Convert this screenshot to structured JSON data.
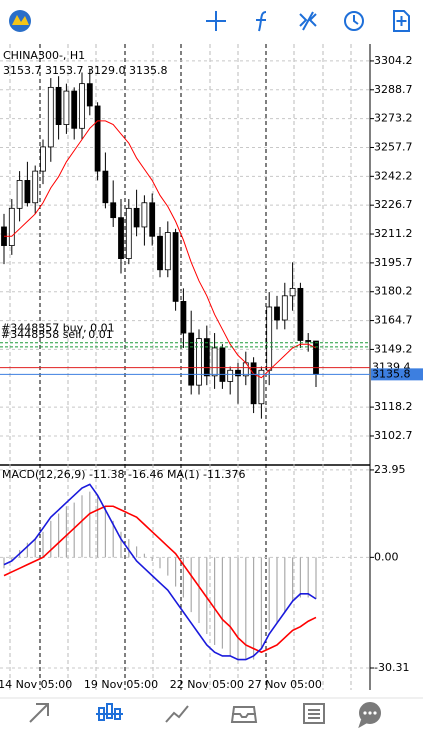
{
  "header": {
    "symbol": "CHINA300-, H1",
    "ohlc": "3153.7 3153.7 3129.0 3135.8"
  },
  "chart_data": [
    {
      "type": "candlestick",
      "open": [
        3215,
        3205,
        3225,
        3240,
        3228,
        3245,
        3258,
        3290,
        3270,
        3288,
        3268,
        3292,
        3280,
        3245,
        3228,
        3220,
        3198,
        3225,
        3215,
        3228,
        3210,
        3192,
        3212,
        3175,
        3158,
        3130,
        3155,
        3135,
        3150,
        3132,
        3138,
        3135,
        3142,
        3120,
        3138,
        3172,
        3165,
        3178,
        3182,
        3154,
        3153.7
      ],
      "high": [
        3222,
        3230,
        3245,
        3250,
        3248,
        3262,
        3295,
        3296,
        3292,
        3290,
        3298,
        3300,
        3282,
        3255,
        3240,
        3230,
        3230,
        3235,
        3232,
        3233,
        3215,
        3218,
        3214,
        3182,
        3170,
        3160,
        3162,
        3158,
        3152,
        3140,
        3142,
        3148,
        3145,
        3140,
        3180,
        3178,
        3185,
        3196,
        3185,
        3158,
        3153.7
      ],
      "low": [
        3195,
        3200,
        3218,
        3226,
        3222,
        3238,
        3250,
        3262,
        3265,
        3262,
        3262,
        3275,
        3240,
        3225,
        3215,
        3190,
        3195,
        3210,
        3205,
        3205,
        3188,
        3188,
        3170,
        3150,
        3125,
        3125,
        3130,
        3128,
        3128,
        3125,
        3120,
        3130,
        3115,
        3112,
        3130,
        3160,
        3160,
        3170,
        3150,
        3148,
        3129.0
      ],
      "close": [
        3205,
        3225,
        3240,
        3228,
        3245,
        3258,
        3290,
        3270,
        3288,
        3268,
        3292,
        3280,
        3245,
        3228,
        3220,
        3198,
        3225,
        3215,
        3228,
        3210,
        3192,
        3212,
        3175,
        3158,
        3130,
        3155,
        3135,
        3150,
        3132,
        3138,
        3135,
        3142,
        3120,
        3138,
        3172,
        3165,
        3178,
        3182,
        3154,
        3153.7,
        3135.8
      ],
      "up_color": "#ffffff",
      "down_color": "#000000",
      "series": [
        {
          "color": "#ff0000",
          "values": [
            3210,
            3210,
            3214,
            3218,
            3222,
            3228,
            3236,
            3242,
            3250,
            3256,
            3262,
            3268,
            3272,
            3272,
            3270,
            3265,
            3260,
            3252,
            3246,
            3240,
            3232,
            3226,
            3218,
            3208,
            3196,
            3186,
            3178,
            3168,
            3160,
            3152,
            3146,
            3142,
            3136,
            3134,
            3138,
            3142,
            3146,
            3150,
            3152,
            3152,
            3150
          ]
        }
      ],
      "orders": [
        {
          "label": "#3448357 buy, 0.01",
          "value": 3152.8
        },
        {
          "label": "#3448358 sell, 0.01",
          "value": 3150.6
        }
      ],
      "ask": 3139.4,
      "bid": 3135.8,
      "ylim": [
        3087.1,
        3313.3
      ],
      "yticks": [
        3304.2,
        3288.7,
        3273.2,
        3257.7,
        3242.2,
        3226.7,
        3211.2,
        3195.7,
        3180.2,
        3164.7,
        3149.2,
        3118.2,
        3102.7
      ],
      "grid": true
    },
    {
      "type": "macd",
      "title": "MACD(12,26,9) -11.38 -16.46 MA(1) -11.376",
      "categories": [
        null,
        null,
        null,
        null,
        "14 Nov 05:00",
        null,
        null,
        null,
        null,
        null,
        null,
        null,
        null,
        null,
        null,
        "19 Nov 05:00",
        null,
        null,
        null,
        null,
        null,
        null,
        null,
        null,
        null,
        null,
        "22 Nov 05:00",
        null,
        null,
        null,
        null,
        null,
        null,
        null,
        null,
        null,
        "27 Nov 05:00",
        null,
        null,
        null,
        null
      ],
      "series": [
        {
          "color": "#aaaaaa",
          "values": [
            -3,
            -1,
            2,
            4,
            5,
            7,
            10,
            12,
            14,
            15,
            17,
            18,
            17,
            14,
            10,
            7,
            5,
            3,
            1,
            -1,
            -3,
            -5,
            -8,
            -11,
            -15,
            -18,
            -21,
            -24,
            -25,
            -27,
            -28,
            -28,
            -28,
            -25,
            -20,
            -18,
            -15,
            -12,
            -11,
            -11,
            -11.38
          ]
        },
        {
          "color": "#ff0000",
          "values": [
            -5,
            -4,
            -3,
            -2,
            -1,
            0,
            2,
            4,
            6,
            8,
            10,
            12,
            13,
            14,
            14,
            13,
            12,
            11,
            9,
            7,
            5,
            3,
            1,
            -2,
            -5,
            -8,
            -11,
            -14,
            -17,
            -19,
            -22,
            -24,
            -25,
            -26,
            -25,
            -24,
            -22,
            -20,
            -19,
            -17.5,
            -16.46
          ]
        },
        {
          "color": "#1a1adc",
          "values": [
            -2,
            -1,
            1,
            3,
            5,
            8,
            11,
            13,
            15,
            17,
            19,
            20,
            17,
            13,
            9,
            5,
            2,
            -1,
            -3,
            -5,
            -7,
            -9,
            -12,
            -15,
            -18,
            -21,
            -24,
            -26,
            -27,
            -27,
            -28,
            -28,
            -27,
            -25,
            -21,
            -18,
            -15,
            -12,
            -10,
            -10,
            -11.376
          ]
        }
      ],
      "ylim": [
        -33.05,
        25.3
      ],
      "yticks": [
        23.95,
        {
          "value": 0,
          "label": "0.00"
        },
        -30.31
      ],
      "grid": true
    }
  ]
}
